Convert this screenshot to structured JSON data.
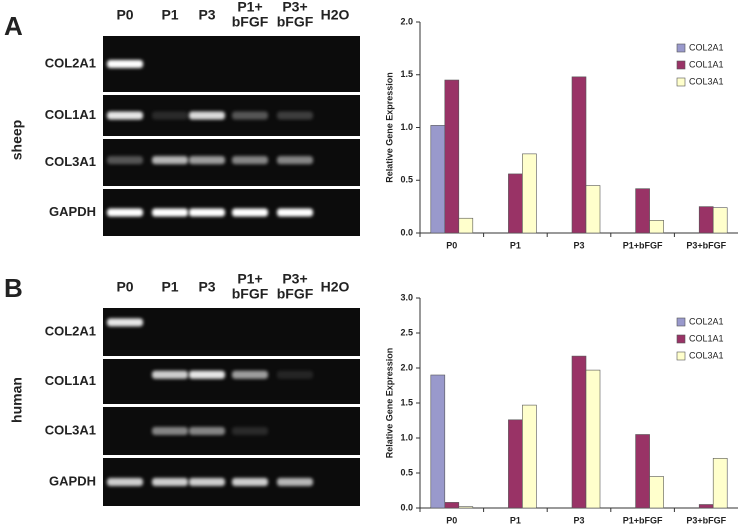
{
  "panels": [
    {
      "letter": "A",
      "species": "sheep",
      "lanes": [
        [
          "P0"
        ],
        [
          "P1"
        ],
        [
          "P3"
        ],
        [
          "P1+",
          "bFGF"
        ],
        [
          "P3+",
          "bFGF"
        ],
        [
          "H2O"
        ]
      ],
      "genes": [
        "COL2A1",
        "COL1A1",
        "COL3A1",
        "GAPDH"
      ]
    },
    {
      "letter": "B",
      "species": "human",
      "lanes": [
        [
          "P0"
        ],
        [
          "P1"
        ],
        [
          "P3"
        ],
        [
          "P1+",
          "bFGF"
        ],
        [
          "P3+",
          "bFGF"
        ],
        [
          "H2O"
        ]
      ],
      "genes": [
        "COL2A1",
        "COL1A1",
        "COL3A1",
        "GAPDH"
      ]
    }
  ],
  "chart_data": [
    {
      "type": "bar",
      "y_label": "Relative Gene Expression",
      "categories": [
        "P0",
        "P1",
        "P3",
        "P1+bFGF",
        "P3+bFGF"
      ],
      "series": [
        {
          "name": "COL2A1",
          "color": "#9999cc",
          "values": [
            1.02,
            0,
            0,
            0,
            0
          ]
        },
        {
          "name": "COL1A1",
          "color": "#993366",
          "values": [
            1.45,
            0.56,
            1.48,
            0.42,
            0.25
          ]
        },
        {
          "name": "COL3A1",
          "color": "#ffffcc",
          "values": [
            0.14,
            0.75,
            0.45,
            0.12,
            0.24
          ]
        }
      ],
      "ylim": [
        0,
        2
      ],
      "yticks": [
        {
          "value": 0,
          "label": "0.0"
        },
        {
          "value": 0.5,
          "label": "0.5"
        },
        {
          "value": 1,
          "label": "1.0"
        },
        {
          "value": 1.5,
          "label": "1.5"
        },
        {
          "value": 2,
          "label": "2.0"
        }
      ],
      "legend": "upper right"
    },
    {
      "type": "bar",
      "y_label": "Relative Gene Expression",
      "categories": [
        "P0",
        "P1",
        "P3",
        "P1+bFGF",
        "P3+bFGF"
      ],
      "series": [
        {
          "name": "COL2A1",
          "color": "#9999cc",
          "values": [
            1.9,
            0,
            0,
            0,
            0
          ]
        },
        {
          "name": "COL1A1",
          "color": "#993366",
          "values": [
            0.08,
            1.26,
            2.17,
            1.05,
            0.05
          ]
        },
        {
          "name": "COL3A1",
          "color": "#ffffcc",
          "values": [
            0.02,
            1.47,
            1.97,
            0.45,
            0.71
          ]
        }
      ],
      "ylim": [
        0,
        3
      ],
      "yticks": [
        {
          "value": 0,
          "label": "0.0"
        },
        {
          "value": 0.5,
          "label": "0.5"
        },
        {
          "value": 1,
          "label": "1.0"
        },
        {
          "value": 1.5,
          "label": "1.5"
        },
        {
          "value": 2,
          "label": "2.0"
        },
        {
          "value": 2.5,
          "label": "2.5"
        },
        {
          "value": 3,
          "label": "3.0"
        }
      ],
      "legend": "upper right"
    }
  ]
}
